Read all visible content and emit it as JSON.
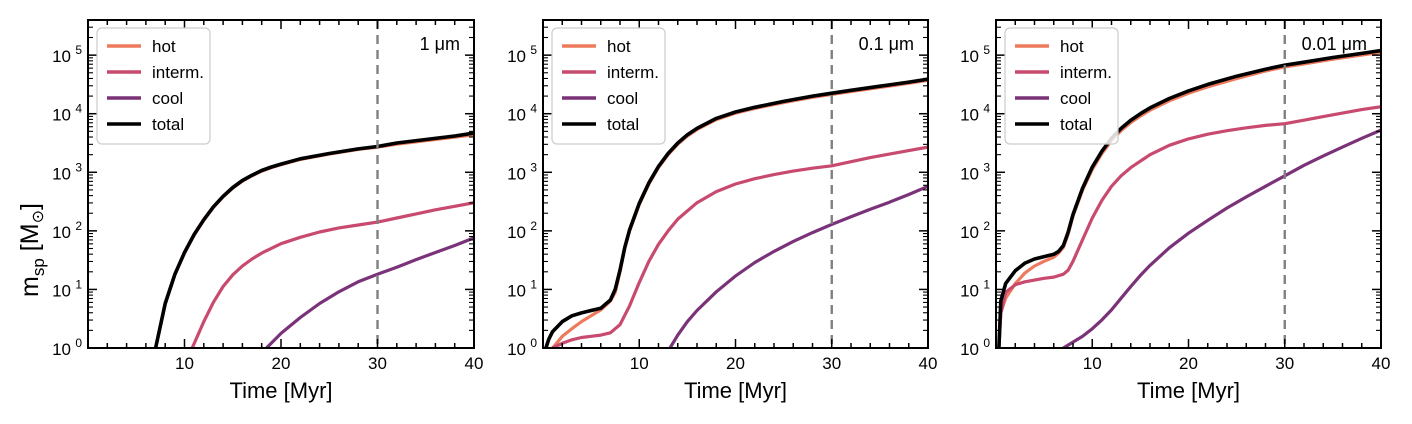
{
  "figure": {
    "ylabel_main": "m",
    "ylabel_sub": "sp",
    "ylabel_unit_open": " [M",
    "ylabel_sun": "⊙",
    "ylabel_unit_close": "]"
  },
  "chart_data": [
    {
      "type": "line",
      "annotation": "1 μm",
      "xlabel": "Time [Myr]",
      "ylabel": "m_sp [M_⊙]",
      "xlim": [
        0,
        40
      ],
      "ylim_log10": [
        0,
        5.6
      ],
      "yscale": "log",
      "xticks": [
        "10",
        "20",
        "30",
        "40"
      ],
      "yticks": [
        {
          "base": "10",
          "exp": "0"
        },
        {
          "base": "10",
          "exp": "1"
        },
        {
          "base": "10",
          "exp": "2"
        },
        {
          "base": "10",
          "exp": "3"
        },
        {
          "base": "10",
          "exp": "4"
        },
        {
          "base": "10",
          "exp": "5"
        }
      ],
      "vline_x": 30,
      "legend_position": "top-left",
      "series": [
        {
          "name": "hot",
          "color": "#ed7a5c",
          "x": [
            7.0,
            8,
            9,
            10,
            11,
            12,
            13,
            14,
            15,
            16,
            17,
            18,
            19,
            20,
            22,
            25,
            28,
            30,
            32,
            35,
            38,
            40
          ],
          "log10_y": [
            0.0,
            0.75,
            1.25,
            1.62,
            1.93,
            2.18,
            2.4,
            2.58,
            2.73,
            2.85,
            2.94,
            3.02,
            3.08,
            3.13,
            3.22,
            3.31,
            3.39,
            3.43,
            3.48,
            3.54,
            3.6,
            3.64
          ]
        },
        {
          "name": "interm.",
          "color": "#c84a6e",
          "x": [
            10.8,
            12,
            13,
            14,
            15,
            16,
            17,
            18,
            20,
            22,
            24,
            26,
            28,
            30,
            32,
            34,
            36,
            38,
            40
          ],
          "log10_y": [
            0.0,
            0.45,
            0.78,
            1.05,
            1.25,
            1.4,
            1.52,
            1.62,
            1.78,
            1.89,
            1.98,
            2.05,
            2.1,
            2.15,
            2.22,
            2.29,
            2.36,
            2.42,
            2.48
          ]
        },
        {
          "name": "cool",
          "color": "#7a3278",
          "x": [
            18.5,
            20,
            22,
            24,
            26,
            28,
            30,
            32,
            34,
            36,
            38,
            40
          ],
          "log10_y": [
            0.0,
            0.25,
            0.52,
            0.76,
            0.96,
            1.13,
            1.26,
            1.38,
            1.51,
            1.63,
            1.75,
            1.88
          ]
        },
        {
          "name": "total",
          "color": "#000000",
          "x": [
            7.0,
            8,
            9,
            10,
            11,
            12,
            13,
            14,
            15,
            16,
            17,
            18,
            19,
            20,
            22,
            25,
            28,
            30,
            32,
            35,
            38,
            40
          ],
          "log10_y": [
            0.0,
            0.76,
            1.26,
            1.63,
            1.94,
            2.19,
            2.41,
            2.59,
            2.74,
            2.86,
            2.95,
            3.03,
            3.09,
            3.14,
            3.23,
            3.32,
            3.4,
            3.44,
            3.5,
            3.56,
            3.62,
            3.67
          ]
        }
      ]
    },
    {
      "type": "line",
      "annotation": "0.1 μm",
      "xlabel": "Time [Myr]",
      "ylabel": "m_sp [M_⊙]",
      "xlim": [
        0,
        40
      ],
      "ylim_log10": [
        0,
        5.6
      ],
      "yscale": "log",
      "xticks": [
        "10",
        "20",
        "30",
        "40"
      ],
      "yticks": [
        {
          "base": "10",
          "exp": "0"
        },
        {
          "base": "10",
          "exp": "1"
        },
        {
          "base": "10",
          "exp": "2"
        },
        {
          "base": "10",
          "exp": "3"
        },
        {
          "base": "10",
          "exp": "4"
        },
        {
          "base": "10",
          "exp": "5"
        }
      ],
      "vline_x": 30,
      "legend_position": "top-left",
      "series": [
        {
          "name": "hot",
          "color": "#ed7a5c",
          "x": [
            1.0,
            2,
            3,
            4,
            5,
            6,
            7,
            7.5,
            8,
            8.5,
            9,
            10,
            11,
            12,
            13,
            14,
            15,
            16,
            18,
            20,
            22,
            25,
            28,
            30,
            32,
            35,
            38,
            40
          ],
          "log10_y": [
            0.0,
            0.2,
            0.33,
            0.45,
            0.55,
            0.65,
            0.8,
            0.95,
            1.3,
            1.7,
            2.0,
            2.45,
            2.8,
            3.08,
            3.3,
            3.48,
            3.62,
            3.73,
            3.9,
            4.01,
            4.09,
            4.19,
            4.28,
            4.33,
            4.38,
            4.45,
            4.52,
            4.57
          ]
        },
        {
          "name": "interm.",
          "color": "#c84a6e",
          "x": [
            1.0,
            2,
            3,
            4,
            5,
            6,
            7,
            8,
            9,
            10,
            11,
            12,
            13,
            14,
            16,
            18,
            20,
            22,
            24,
            26,
            28,
            30,
            32,
            34,
            36,
            38,
            40
          ],
          "log10_y": [
            0.0,
            0.08,
            0.14,
            0.18,
            0.2,
            0.22,
            0.26,
            0.4,
            0.72,
            1.12,
            1.48,
            1.77,
            2.0,
            2.2,
            2.48,
            2.67,
            2.8,
            2.89,
            2.96,
            3.02,
            3.07,
            3.11,
            3.18,
            3.25,
            3.31,
            3.37,
            3.43
          ]
        },
        {
          "name": "cool",
          "color": "#7a3278",
          "x": [
            13.2,
            14,
            15,
            16,
            18,
            20,
            22,
            24,
            26,
            28,
            30,
            32,
            34,
            36,
            38,
            40
          ],
          "log10_y": [
            0.0,
            0.22,
            0.45,
            0.64,
            0.96,
            1.23,
            1.46,
            1.65,
            1.82,
            1.97,
            2.11,
            2.24,
            2.37,
            2.49,
            2.62,
            2.76
          ]
        },
        {
          "name": "total",
          "color": "#000000",
          "x": [
            0.3,
            0.6,
            1,
            2,
            3,
            4,
            5,
            6,
            7,
            7.5,
            8,
            8.5,
            9,
            10,
            11,
            12,
            13,
            14,
            15,
            16,
            18,
            20,
            22,
            25,
            28,
            30,
            32,
            35,
            38,
            40
          ],
          "log10_y": [
            0.0,
            0.15,
            0.28,
            0.45,
            0.55,
            0.6,
            0.64,
            0.68,
            0.82,
            1.0,
            1.33,
            1.72,
            2.02,
            2.47,
            2.82,
            3.1,
            3.32,
            3.5,
            3.64,
            3.75,
            3.92,
            4.03,
            4.11,
            4.21,
            4.3,
            4.35,
            4.4,
            4.47,
            4.54,
            4.59
          ]
        }
      ]
    },
    {
      "type": "line",
      "annotation": "0.01 μm",
      "xlabel": "Time [Myr]",
      "ylabel": "m_sp [M_⊙]",
      "xlim": [
        0,
        40
      ],
      "ylim_log10": [
        0,
        5.6
      ],
      "yscale": "log",
      "xticks": [
        "10",
        "20",
        "30",
        "40"
      ],
      "yticks": [
        {
          "base": "10",
          "exp": "0"
        },
        {
          "base": "10",
          "exp": "1"
        },
        {
          "base": "10",
          "exp": "2"
        },
        {
          "base": "10",
          "exp": "3"
        },
        {
          "base": "10",
          "exp": "4"
        },
        {
          "base": "10",
          "exp": "5"
        }
      ],
      "vline_x": 30,
      "legend_position": "top-left",
      "series": [
        {
          "name": "hot",
          "color": "#ed7a5c",
          "x": [
            0.3,
            0.5,
            1,
            2,
            3,
            4,
            5,
            6,
            6.5,
            7,
            7.5,
            8,
            9,
            10,
            11,
            12,
            13,
            14,
            15,
            16,
            18,
            20,
            22,
            25,
            28,
            30,
            32,
            35,
            38,
            40
          ],
          "log10_y": [
            0.0,
            0.6,
            0.85,
            1.1,
            1.28,
            1.4,
            1.48,
            1.55,
            1.62,
            1.72,
            1.95,
            2.25,
            2.7,
            3.05,
            3.32,
            3.54,
            3.71,
            3.85,
            3.96,
            4.06,
            4.22,
            4.35,
            4.46,
            4.6,
            4.73,
            4.8,
            4.85,
            4.93,
            5.0,
            5.05
          ]
        },
        {
          "name": "interm.",
          "color": "#c84a6e",
          "x": [
            0.3,
            0.5,
            1,
            2,
            3,
            4,
            5,
            6,
            7,
            7.5,
            8,
            9,
            10,
            11,
            12,
            13,
            14,
            16,
            18,
            20,
            22,
            24,
            26,
            28,
            30,
            32,
            34,
            36,
            38,
            40
          ],
          "log10_y": [
            0.0,
            0.6,
            0.95,
            1.08,
            1.13,
            1.16,
            1.19,
            1.21,
            1.26,
            1.33,
            1.48,
            1.85,
            2.22,
            2.52,
            2.76,
            2.94,
            3.08,
            3.3,
            3.46,
            3.57,
            3.65,
            3.71,
            3.76,
            3.8,
            3.83,
            3.89,
            3.95,
            4.01,
            4.07,
            4.12
          ]
        },
        {
          "name": "cool",
          "color": "#7a3278",
          "x": [
            7.0,
            8,
            9,
            10,
            11,
            12,
            13,
            14,
            15,
            16,
            18,
            20,
            22,
            24,
            26,
            28,
            30,
            32,
            34,
            36,
            38,
            40
          ],
          "log10_y": [
            0.0,
            0.1,
            0.2,
            0.33,
            0.48,
            0.65,
            0.85,
            1.05,
            1.24,
            1.41,
            1.71,
            1.96,
            2.18,
            2.39,
            2.58,
            2.76,
            2.94,
            3.12,
            3.28,
            3.43,
            3.58,
            3.72
          ]
        },
        {
          "name": "total",
          "color": "#000000",
          "x": [
            0.3,
            0.5,
            1,
            2,
            3,
            4,
            5,
            6,
            6.5,
            7,
            7.5,
            8,
            9,
            10,
            11,
            12,
            13,
            14,
            15,
            16,
            18,
            20,
            22,
            25,
            28,
            30,
            32,
            35,
            38,
            40
          ],
          "log10_y": [
            0.0,
            0.8,
            1.1,
            1.32,
            1.45,
            1.52,
            1.56,
            1.6,
            1.65,
            1.75,
            1.98,
            2.28,
            2.73,
            3.09,
            3.36,
            3.58,
            3.75,
            3.89,
            4.0,
            4.1,
            4.26,
            4.39,
            4.5,
            4.64,
            4.76,
            4.83,
            4.88,
            4.96,
            5.03,
            5.08
          ]
        }
      ]
    }
  ]
}
